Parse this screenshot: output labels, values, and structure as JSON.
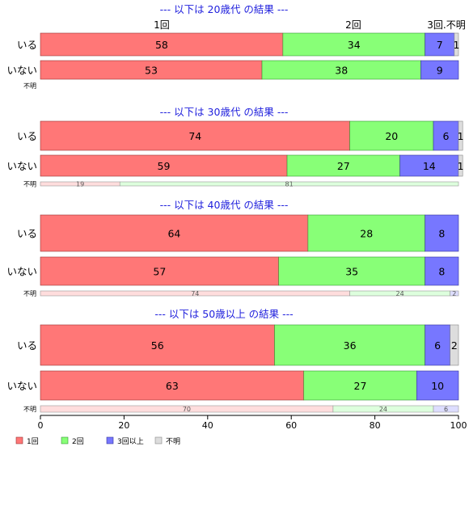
{
  "colors": {
    "once": "#ff7777",
    "twice": "#88ff77",
    "three_plus": "#7777ff",
    "unknown": "#dddddd",
    "once_light": "#ffdddd",
    "twice_light": "#ddffdd",
    "three_plus_light": "#ddddff",
    "unknown_light": "#f2f2f2",
    "section_title": "#2222dd"
  },
  "chart_data": {
    "type": "bar",
    "orientation": "horizontal",
    "stacked": true,
    "xlim": [
      0,
      100
    ],
    "x_ticks": [
      0,
      20,
      40,
      60,
      80,
      100
    ],
    "legend_position": "bottom-left",
    "legend": [
      "1回",
      "2回",
      "3回以上",
      "不明"
    ],
    "top_column_labels": [
      "1回",
      "2回",
      "3回.不明"
    ],
    "sections": [
      {
        "title": "--- 以下は 20歳代 の結果 ---",
        "rows": [
          {
            "label": "いる",
            "values": [
              58,
              34,
              7,
              1
            ],
            "labels": [
              "58",
              "34",
              "7",
              "1"
            ]
          },
          {
            "label": "いない",
            "values": [
              53,
              38,
              9,
              0
            ],
            "labels": [
              "53",
              "38",
              "9",
              ""
            ]
          },
          {
            "label": "不明",
            "values": [],
            "labels": []
          }
        ]
      },
      {
        "title": "--- 以下は 30歳代 の結果 ---",
        "rows": [
          {
            "label": "いる",
            "values": [
              74,
              20,
              6,
              1
            ],
            "labels": [
              "74",
              "20",
              "6",
              "1"
            ]
          },
          {
            "label": "いない",
            "values": [
              59,
              27,
              14,
              1
            ],
            "labels": [
              "59",
              "27",
              "14",
              "1"
            ]
          },
          {
            "label": "不明",
            "values": [
              19,
              81,
              0,
              0
            ],
            "labels": [
              "19",
              "81",
              "",
              ""
            ]
          }
        ]
      },
      {
        "title": "--- 以下は 40歳代 の結果 ---",
        "rows": [
          {
            "label": "いる",
            "values": [
              64,
              28,
              8,
              0
            ],
            "labels": [
              "64",
              "28",
              "8",
              ""
            ]
          },
          {
            "label": "いない",
            "values": [
              57,
              35,
              8,
              0
            ],
            "labels": [
              "57",
              "35",
              "8",
              ""
            ]
          },
          {
            "label": "不明",
            "values": [
              74,
              24,
              2,
              0
            ],
            "labels": [
              "74",
              "24",
              "2",
              ""
            ]
          }
        ]
      },
      {
        "title": "--- 以下は 50歳以上 の結果 ---",
        "rows": [
          {
            "label": "いる",
            "values": [
              56,
              36,
              6,
              2
            ],
            "labels": [
              "56",
              "36",
              "6",
              "2"
            ]
          },
          {
            "label": "いない",
            "values": [
              63,
              27,
              10,
              0
            ],
            "labels": [
              "63",
              "27",
              "10",
              ""
            ]
          },
          {
            "label": "不明",
            "values": [
              70,
              24,
              6,
              0
            ],
            "labels": [
              "70",
              "24",
              "6",
              ""
            ]
          }
        ]
      }
    ]
  }
}
